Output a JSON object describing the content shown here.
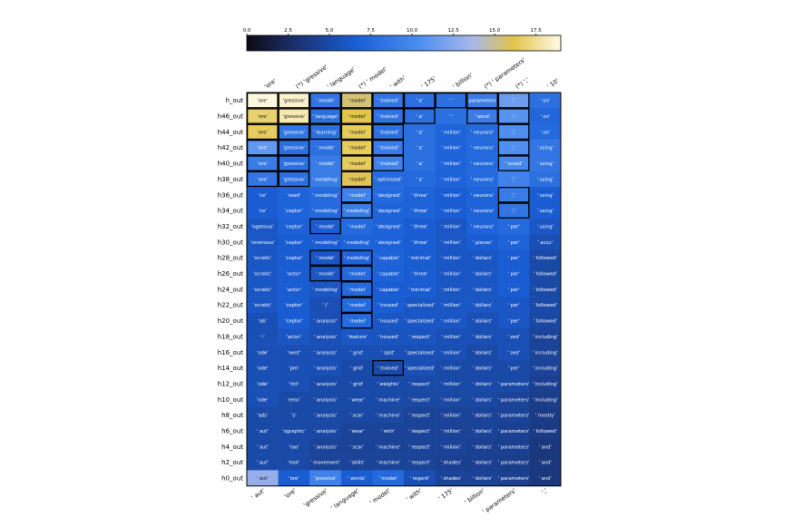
{
  "chart_data": {
    "type": "heatmap",
    "colorbar": {
      "ticks": [
        "0.0",
        "2.5",
        "5.0",
        "7.5",
        "10.0",
        "12.5",
        "15.0",
        "17.5"
      ],
      "tick_values": [
        0,
        2.5,
        5,
        7.5,
        10,
        12.5,
        15,
        17.5
      ],
      "range": [
        0,
        19
      ],
      "stops": [
        "#0b0b10",
        "#1b2f6b",
        "#1a5fd6",
        "#4d8ef0",
        "#a9b8ea",
        "#e2c44a",
        "#fffbe8"
      ],
      "stop_positions": [
        0,
        0.15,
        0.35,
        0.55,
        0.72,
        0.85,
        1
      ]
    },
    "top_labels": [
      "'ore'",
      "(*) 'gressive'",
      "' language'",
      "(*) ' model'",
      "' with'",
      "' 175'",
      "' billion'",
      "(*) ' parameters'",
      "(*) ','",
      "' 10'"
    ],
    "bottom_labels": [
      "' aut'",
      "'ore'",
      "'gressive'",
      "' language'",
      "' model'",
      "' with'",
      "' 175'",
      "' billion'",
      "' parameters'",
      "','"
    ],
    "rows": [
      "h_out",
      "h46_out",
      "h44_out",
      "h42_out",
      "h40_out",
      "h38_out",
      "h36_out",
      "h34_out",
      "h32_out",
      "h30_out",
      "h28_out",
      "h26_out",
      "h24_out",
      "h22_out",
      "h20_out",
      "h18_out",
      "h16_out",
      "h14_out",
      "h12_out",
      "h10_out",
      "h8_out",
      "h6_out",
      "h4_out",
      "h2_out",
      "h0_out"
    ],
    "cells": [
      [
        "'ore'",
        "'gressive'",
        "' model'",
        "' model'",
        "' trained'",
        "' a'",
        "' '",
        "parameters",
        "','",
        "' on'"
      ],
      [
        "'ore'",
        "'gressive'",
        "' language'",
        "' model'",
        "' trained'",
        "' a'",
        "' '",
        "' word'",
        "','",
        "' on'"
      ],
      [
        "'ore'",
        "'gressive'",
        "' learning'",
        "' model'",
        "' trained'",
        "' a'",
        "' million'",
        "' neurons'",
        "','",
        "' on'"
      ],
      [
        "'ore'",
        "'gressive'",
        "' model'",
        "' model'",
        "' trained'",
        "' a'",
        "' million'",
        "' neurons'",
        "','",
        "' using'"
      ],
      [
        "'ore'",
        "'gressive'",
        "' model'",
        "' model'",
        "' trained'",
        "' a'",
        "' million'",
        "' neurons'",
        "' tuned'",
        "' using'"
      ],
      [
        "'ore'",
        "'gressive'",
        "' modeling'",
        "' model'",
        "' optimized'",
        "' a'",
        "' million'",
        "' neurons'",
        "','",
        "' using'"
      ],
      [
        "'ce'",
        "'ssed'",
        "' modeling'",
        "' model'",
        "' designed'",
        "' three'",
        "' million'",
        "' neurons'",
        "','",
        "' using'"
      ],
      [
        "'ce'",
        "'ceptor'",
        "' modeling'",
        "' modeling'",
        "' designed'",
        "' three'",
        "' million'",
        "' neurons'",
        "','",
        "' using'"
      ],
      [
        "'ogenous'",
        "'ceptor'",
        "' model'",
        "' model'",
        "' designed'",
        "' three'",
        "' million'",
        "' neurons'",
        "' per'",
        "' using'"
      ],
      [
        "'onomous'",
        "'ceptor'",
        "' modeling'",
        "' modeling'",
        "' designed'",
        "' three'",
        "' million'",
        "' pieces'",
        "' per'",
        "' accu'"
      ],
      [
        "'ocratic'",
        "'ceptor'",
        "' model'",
        "' modeling'",
        "' capable'",
        "' minimal'",
        "' million'",
        "' dollars'",
        "' per'",
        "' followed'"
      ],
      [
        "'ocratic'",
        "'actor'",
        "' model'",
        "' model'",
        "' capable'",
        "' three'",
        "' million'",
        "' dollars'",
        "' per'",
        "' followed'"
      ],
      [
        "'ocratic'",
        "'actor'",
        "' modeling'",
        "' model'",
        "' capable'",
        "' minimal'",
        "' million'",
        "' dollars'",
        "' per'",
        "' followed'"
      ],
      [
        "'ocratic'",
        "'ceptor'",
        "' ('",
        "' model'",
        "' housed'",
        "' specialized'",
        "' million'",
        "' dollars'",
        "' per'",
        "' followed'"
      ],
      [
        "'ob'",
        "'ceptor'",
        "' analysis'",
        "' model'",
        "' housed'",
        "' specialized'",
        "' million'",
        "' dollars'",
        "' per'",
        "' followed'"
      ],
      [
        "'-'",
        "'actor'",
        "' analysis'",
        "' feature'",
        "' housed'",
        "' respect'",
        "' million'",
        "' dollars'",
        "' zed'",
        "' including'"
      ],
      [
        "'ode'",
        "'vent'",
        "' analysis'",
        "' grid'",
        "' split'",
        "' specialized'",
        "' million'",
        "' dollars'",
        "' zed'",
        "' including'"
      ],
      [
        "'ode'",
        "'pm'",
        "' analysis'",
        "' grid'",
        "' trained'",
        "' specialized'",
        "' million'",
        "' dollars'",
        "' per'",
        "' including'"
      ],
      [
        "'ode'",
        "'rict'",
        "' analysis'",
        "' grid'",
        "' weights'",
        "' respect'",
        "' million'",
        "' dollars'",
        "' parameters'",
        "' including'"
      ],
      [
        "'ode'",
        "'ems'",
        "' analysis'",
        "' wear'",
        "' machine'",
        "' respect'",
        "' million'",
        "' dollars'",
        "' parameters'",
        "' including'"
      ],
      [
        "'ads'",
        "'s'",
        "' analysis'",
        "' scar'",
        "' machine'",
        "' respect'",
        "' million'",
        "' dollars'",
        "' parameters'",
        "' mostly'"
      ],
      [
        "' aut'",
        "'ographic'",
        "' analysis'",
        "' wear'",
        "' whir'",
        "' respect'",
        "' million'",
        "' dollars'",
        "' parameters'",
        "' followed'"
      ],
      [
        "' aut'",
        "'rao'",
        "' analysis'",
        "' scar'",
        "' machine'",
        "' respect'",
        "' million'",
        "' dollars'",
        "' parameters'",
        "' and'"
      ],
      [
        "' aut'",
        "'mot'",
        "' movement'",
        "' skills'",
        "' machine'",
        "' respect'",
        "' shades'",
        "' dollars'",
        "' parameters'",
        "' and'"
      ],
      [
        "' aut'",
        "'ore'",
        "'gressive'",
        "' words'",
        "' model'",
        "' regard'",
        "' shades'",
        "' dollars'",
        "' parameters'",
        "' and'"
      ]
    ],
    "values": [
      [
        18.8,
        18.5,
        8.5,
        15.5,
        8.5,
        8.0,
        8.0,
        9.0,
        11.5,
        8.0
      ],
      [
        16.8,
        18.0,
        8.0,
        16.2,
        8.2,
        8.0,
        8.0,
        9.0,
        10.8,
        7.2
      ],
      [
        16.5,
        8.5,
        8.0,
        16.5,
        8.0,
        8.0,
        7.0,
        7.5,
        10.5,
        7.5
      ],
      [
        11.2,
        8.0,
        8.0,
        16.5,
        9.0,
        8.0,
        7.0,
        7.5,
        10.5,
        8.5
      ],
      [
        9.0,
        8.0,
        9.0,
        16.5,
        9.5,
        8.0,
        7.0,
        7.5,
        10.0,
        8.5
      ],
      [
        8.5,
        8.0,
        9.0,
        16.0,
        7.5,
        7.5,
        7.0,
        7.5,
        9.5,
        8.0
      ],
      [
        6.5,
        7.0,
        7.5,
        9.5,
        7.5,
        7.0,
        6.5,
        7.0,
        9.0,
        6.5
      ],
      [
        6.5,
        7.0,
        7.5,
        9.0,
        7.0,
        7.0,
        6.5,
        7.0,
        8.5,
        6.5
      ],
      [
        6.0,
        6.8,
        6.5,
        7.5,
        7.0,
        6.5,
        6.0,
        7.0,
        7.5,
        6.0
      ],
      [
        6.0,
        6.5,
        6.5,
        7.0,
        6.8,
        6.5,
        6.0,
        6.5,
        7.0,
        5.5
      ],
      [
        6.0,
        6.5,
        6.0,
        7.0,
        7.0,
        6.5,
        6.0,
        6.0,
        6.5,
        5.0
      ],
      [
        6.0,
        6.5,
        6.0,
        7.5,
        6.8,
        6.5,
        6.0,
        6.0,
        6.5,
        5.0
      ],
      [
        6.0,
        6.5,
        6.0,
        7.5,
        6.5,
        6.5,
        6.0,
        6.0,
        6.5,
        5.0
      ],
      [
        6.0,
        6.5,
        5.5,
        7.5,
        6.5,
        6.0,
        6.0,
        6.0,
        6.0,
        5.0
      ],
      [
        5.5,
        6.5,
        5.5,
        7.5,
        6.0,
        6.0,
        6.0,
        5.5,
        6.0,
        4.8
      ],
      [
        5.5,
        6.0,
        5.5,
        6.0,
        5.8,
        5.8,
        5.5,
        5.5,
        5.5,
        4.5
      ],
      [
        5.5,
        5.5,
        5.5,
        5.5,
        5.5,
        5.5,
        5.5,
        5.0,
        5.5,
        4.5
      ],
      [
        5.5,
        5.5,
        5.5,
        5.0,
        5.0,
        5.5,
        5.0,
        5.0,
        5.0,
        4.5
      ],
      [
        5.5,
        5.5,
        5.0,
        5.0,
        5.0,
        5.0,
        5.0,
        5.0,
        5.0,
        4.2
      ],
      [
        5.5,
        5.0,
        5.0,
        5.0,
        5.0,
        4.8,
        4.8,
        4.8,
        4.5,
        4.0
      ],
      [
        5.0,
        5.0,
        5.0,
        4.8,
        4.8,
        4.5,
        4.5,
        4.5,
        4.5,
        3.8
      ],
      [
        5.0,
        5.0,
        4.8,
        4.5,
        4.5,
        4.5,
        4.5,
        4.5,
        4.2,
        3.8
      ],
      [
        5.0,
        5.0,
        4.5,
        4.5,
        4.5,
        4.5,
        4.5,
        4.2,
        4.2,
        3.5
      ],
      [
        5.0,
        5.0,
        4.5,
        4.5,
        4.5,
        4.5,
        4.2,
        4.2,
        4.0,
        3.5
      ],
      [
        13.0,
        6.5,
        9.5,
        6.5,
        7.5,
        5.5,
        4.5,
        4.5,
        4.2,
        3.5
      ]
    ],
    "highlighted_cells": [
      [
        0,
        0
      ],
      [
        1,
        0
      ],
      [
        2,
        0
      ],
      [
        3,
        0
      ],
      [
        4,
        0
      ],
      [
        5,
        0
      ],
      [
        0,
        1
      ],
      [
        1,
        1
      ],
      [
        2,
        1
      ],
      [
        3,
        1
      ],
      [
        4,
        1
      ],
      [
        5,
        1
      ],
      [
        0,
        2
      ],
      [
        1,
        2
      ],
      [
        2,
        2
      ],
      [
        8,
        2
      ],
      [
        10,
        2
      ],
      [
        11,
        2
      ],
      [
        0,
        3
      ],
      [
        1,
        3
      ],
      [
        2,
        3
      ],
      [
        3,
        3
      ],
      [
        4,
        3
      ],
      [
        5,
        3
      ],
      [
        6,
        3
      ],
      [
        7,
        3
      ],
      [
        10,
        3
      ],
      [
        11,
        3
      ],
      [
        12,
        3
      ],
      [
        13,
        3
      ],
      [
        14,
        3
      ],
      [
        0,
        4
      ],
      [
        1,
        4
      ],
      [
        2,
        4
      ],
      [
        3,
        4
      ],
      [
        4,
        4
      ],
      [
        17,
        4
      ],
      [
        0,
        5
      ],
      [
        1,
        5
      ],
      [
        0,
        6
      ],
      [
        0,
        7
      ],
      [
        1,
        7
      ],
      [
        0,
        8
      ],
      [
        1,
        8
      ],
      [
        2,
        8
      ],
      [
        3,
        8
      ],
      [
        4,
        8
      ],
      [
        6,
        8
      ],
      [
        7,
        8
      ]
    ]
  }
}
